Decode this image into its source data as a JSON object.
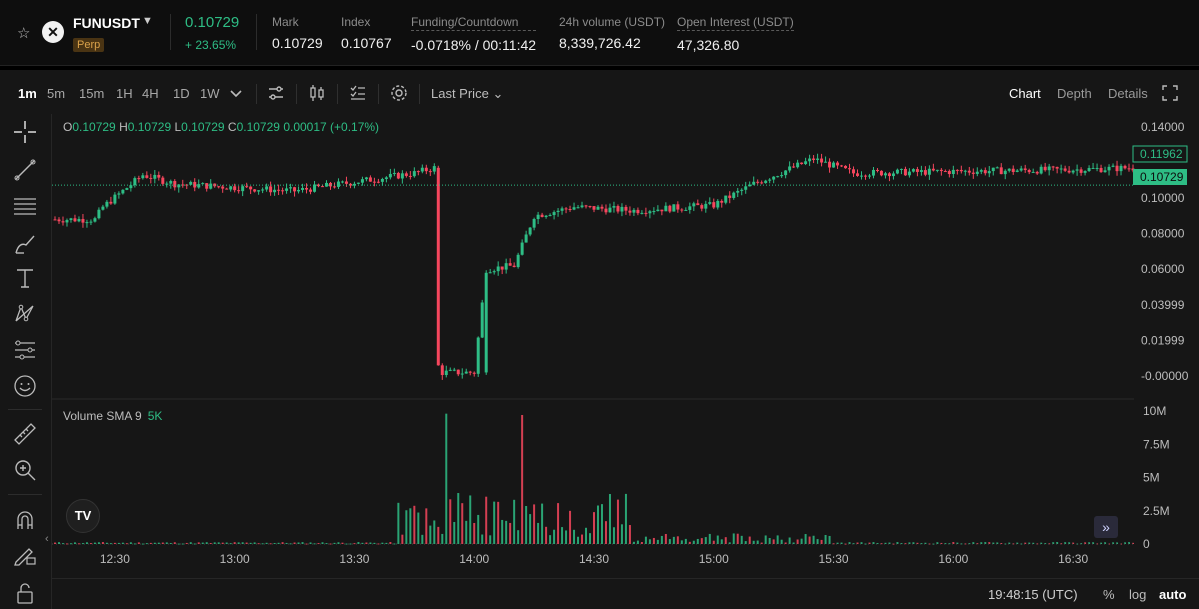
{
  "header": {
    "symbol": "FUNUSDT",
    "badge": "Perp",
    "last_price": "0.10729",
    "change": "+ 23.65%",
    "stats": [
      {
        "label": "Mark",
        "value": "0.10729",
        "dashed": false
      },
      {
        "label": "Index",
        "value": "0.10767",
        "dashed": false
      },
      {
        "label": "Funding/Countdown",
        "value": "-0.0718% / 00:11:42",
        "dashed": true
      },
      {
        "label": "24h volume (USDT)",
        "value": "8,339,726.42",
        "dashed": false
      },
      {
        "label": "Open Interest (USDT)",
        "value": "47,326.80",
        "dashed": true
      }
    ]
  },
  "toolbar": {
    "timeframes": [
      "1m",
      "5m",
      "15m",
      "1H",
      "4H",
      "1D",
      "1W"
    ],
    "active_timeframe": "1m",
    "price_source": "Last Price",
    "views": [
      "Chart",
      "Depth",
      "Details"
    ],
    "active_view": "Chart"
  },
  "legend": {
    "o_key": "O",
    "o": "0.10729",
    "h_key": "H",
    "h": "0.10729",
    "l_key": "L",
    "l": "0.10729",
    "c_key": "C",
    "c": "0.10729",
    "chg": "0.00017 (+0.17%)"
  },
  "volume": {
    "label": "Volume SMA 9",
    "value": "5K"
  },
  "tv_logo_text": "TV",
  "price_axis": {
    "ticks": [
      "0.14000",
      "0.10000",
      "0.08000",
      "0.06000",
      "0.03999",
      "0.01999",
      "-0.00000"
    ],
    "high_label": "0.11962",
    "current_label": "0.10729"
  },
  "volume_axis": {
    "ticks": [
      "10M",
      "7.5M",
      "5M",
      "2.5M",
      "0"
    ]
  },
  "time_axis": {
    "ticks": [
      "12:30",
      "13:00",
      "13:30",
      "14:00",
      "14:30",
      "15:00",
      "15:30",
      "16:00",
      "16:30"
    ]
  },
  "footer": {
    "clock": "19:48:15 (UTC)",
    "options": [
      "%",
      "log",
      "auto"
    ],
    "active_option": "auto"
  },
  "colors": {
    "up": "#2ebd85",
    "down": "#f6465d",
    "current_line": "#2ebd85",
    "highlight_tag": "#2ebd85"
  },
  "chart_data": {
    "type": "candlestick",
    "title": "",
    "x_range": [
      "12:15",
      "16:45"
    ],
    "y_range": [
      0.0,
      0.145
    ],
    "price_ticks": [
      0.14,
      0.1,
      0.08,
      0.06,
      0.03999,
      0.01999,
      0.0
    ],
    "time_ticks": [
      "12:30",
      "13:00",
      "13:30",
      "14:00",
      "14:30",
      "15:00",
      "15:30",
      "16:00",
      "16:30"
    ],
    "close_path_approx": {
      "time": [
        "12:15",
        "12:25",
        "12:27",
        "12:37",
        "12:45",
        "13:00",
        "13:15",
        "13:30",
        "13:45",
        "13:50",
        "13:52",
        "14:00",
        "14:03",
        "14:10",
        "14:15",
        "14:25",
        "14:40",
        "15:00",
        "15:10",
        "15:25",
        "15:35",
        "16:00",
        "16:30",
        "16:45"
      ],
      "price": [
        0.088,
        0.088,
        0.095,
        0.113,
        0.108,
        0.106,
        0.104,
        0.109,
        0.114,
        0.117,
        0.002,
        0.002,
        0.06,
        0.062,
        0.09,
        0.095,
        0.093,
        0.096,
        0.108,
        0.122,
        0.114,
        0.115,
        0.116,
        0.117
      ]
    },
    "current_price": 0.10729,
    "high_marker": 0.11962,
    "volume_ticks": [
      "0",
      "2.5M",
      "5M",
      "7.5M",
      "10M"
    ],
    "volume_peaks_approx": [
      {
        "time": "13:53",
        "volume": 9800000
      },
      {
        "time": "14:12",
        "volume": 9700000
      }
    ],
    "grid": false
  }
}
